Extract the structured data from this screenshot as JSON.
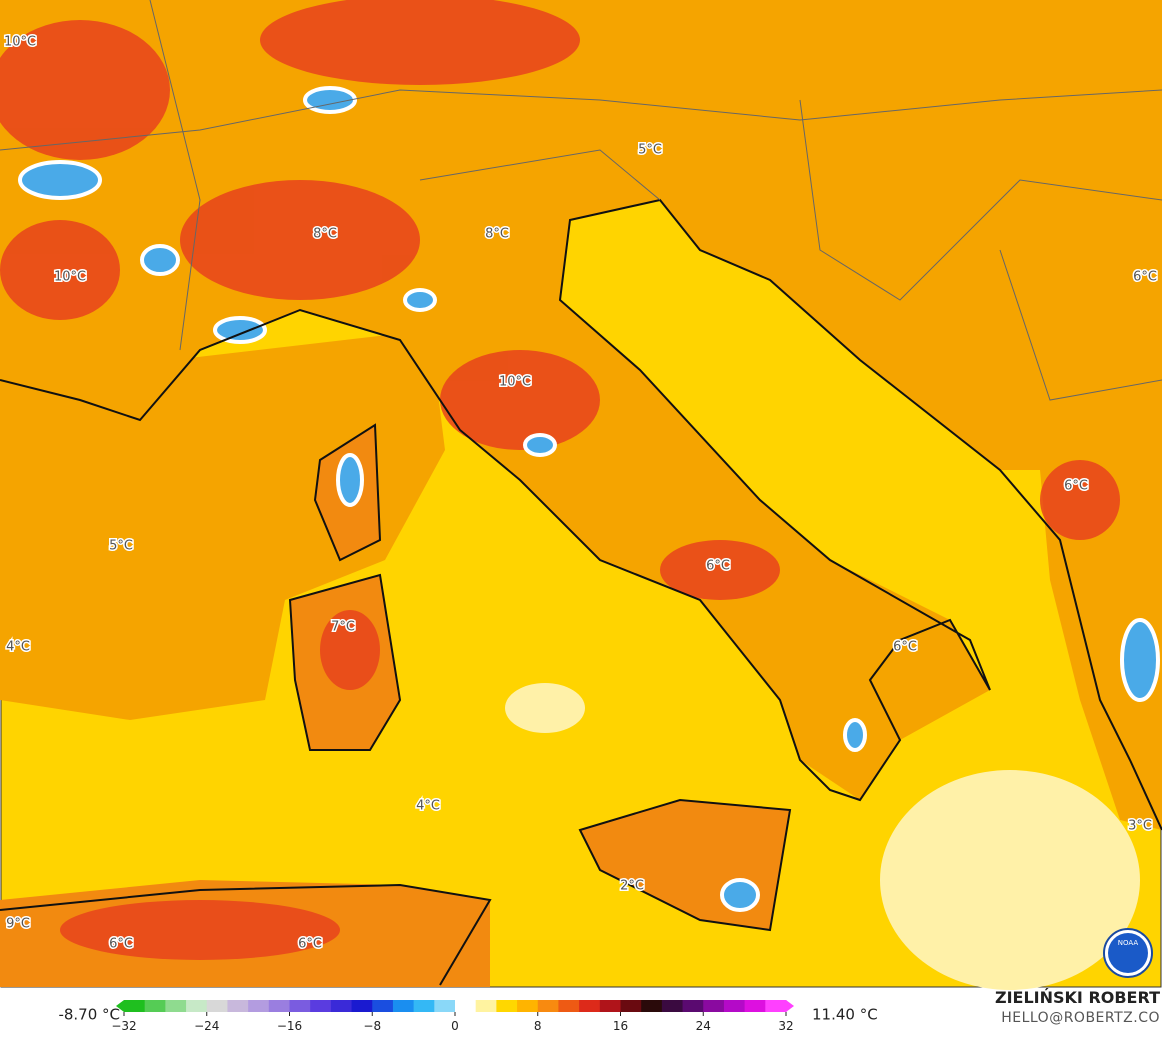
{
  "map": {
    "labels": [
      "10°C",
      "5°C",
      "8°C",
      "8°C",
      "10°C",
      "6°C",
      "10°C",
      "6°C",
      "5°C",
      "6°C",
      "7°C",
      "4°C",
      "6°C",
      "4°C",
      "3°C",
      "2°C",
      "9°C",
      "6°C",
      "6°C"
    ],
    "logo": "NOAA"
  },
  "colorbar": {
    "min_label": "-8.70 °C",
    "max_label": "11.40 °C",
    "range": [
      -32,
      32
    ],
    "ticks": [
      {
        "value": -32,
        "label": "−32"
      },
      {
        "value": -24,
        "label": "−24"
      },
      {
        "value": -16,
        "label": "−16"
      },
      {
        "value": -8,
        "label": "−8"
      },
      0,
      8,
      16,
      24,
      32
    ],
    "colors": [
      "#1fbf1f",
      "#55cc55",
      "#8fdb8f",
      "#c7e9c7",
      "#d8d8d8",
      "#c8b8dc",
      "#b39ce0",
      "#9a7ee0",
      "#7a5ce0",
      "#5a3ce0",
      "#3a2ad8",
      "#1a1ad0",
      "#1a4ee0",
      "#1a8ef0",
      "#34b8f5",
      "#8ad8f8",
      "#ffffff",
      "#fff3a0",
      "#ffd700",
      "#ffb400",
      "#f88a10",
      "#ee5a14",
      "#dd2a1a",
      "#b0141a",
      "#6a0a10",
      "#2a0a0a",
      "#3a0a40",
      "#5a0a70",
      "#8a0aa0",
      "#b40ac8",
      "#dd10e0",
      "#ff40ff"
    ]
  },
  "credits": {
    "name": "ZIELIŃSKI ROBERT",
    "email": "HELLO@ROBERTZ.CO"
  }
}
